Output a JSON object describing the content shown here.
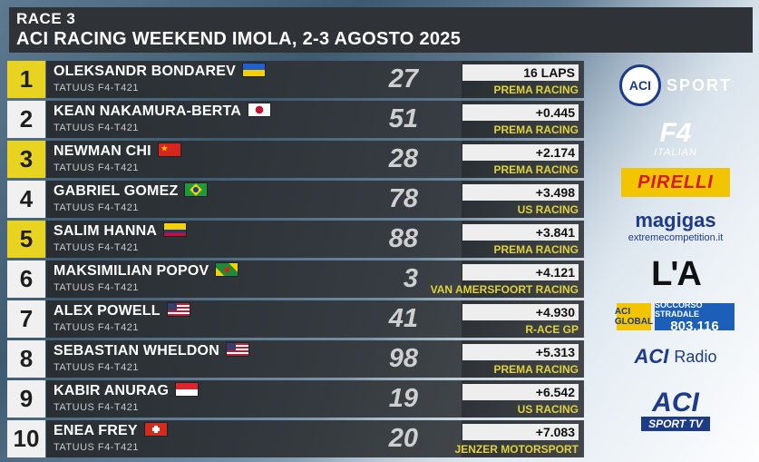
{
  "header": {
    "race": "RACE 3",
    "title": "ACI RACING WEEKEND IMOLA, 2-3 AGOSTO 2025"
  },
  "results": [
    {
      "pos": "1",
      "name": "OLEKSANDR BONDAREV",
      "flag": "ukraine-flag",
      "car": "TATUUS F4-T421",
      "number": "27",
      "gap": "16 LAPS",
      "team": "PREMA RACING",
      "highlight": true
    },
    {
      "pos": "2",
      "name": "KEAN NAKAMURA-BERTA",
      "flag": "japan-flag",
      "car": "TATUUS F4-T421",
      "number": "51",
      "gap": "+0.445",
      "team": "PREMA RACING",
      "highlight": false
    },
    {
      "pos": "3",
      "name": "NEWMAN CHI",
      "flag": "china-flag",
      "car": "TATUUS F4-T421",
      "number": "28",
      "gap": "+2.174",
      "team": "PREMA RACING",
      "highlight": true
    },
    {
      "pos": "4",
      "name": "GABRIEL GOMEZ",
      "flag": "brazil-flag",
      "car": "TATUUS F4-T421",
      "number": "78",
      "gap": "+3.498",
      "team": "US RACING",
      "highlight": false
    },
    {
      "pos": "5",
      "name": "SALIM HANNA",
      "flag": "colombia-flag",
      "car": "TATUUS F4-T421",
      "number": "88",
      "gap": "+3.841",
      "team": "PREMA RACING",
      "highlight": true
    },
    {
      "pos": "6",
      "name": "MAKSIMILIAN POPOV",
      "flag": "grenada-flag",
      "car": "TATUUS F4-T421",
      "number": "3",
      "gap": "+4.121",
      "team": "VAN AMERSFOORT RACING",
      "highlight": false
    },
    {
      "pos": "7",
      "name": "ALEX POWELL",
      "flag": "usa-flag",
      "car": "TATUUS F4-T421",
      "number": "41",
      "gap": "+4.930",
      "team": "R-ACE GP",
      "highlight": false
    },
    {
      "pos": "8",
      "name": "SEBASTIAN WHELDON",
      "flag": "usa-flag",
      "car": "TATUUS F4-T421",
      "number": "98",
      "gap": "+5.313",
      "team": "PREMA RACING",
      "highlight": false
    },
    {
      "pos": "9",
      "name": "KABIR ANURAG",
      "flag": "singapore-flag",
      "car": "TATUUS F4-T421",
      "number": "19",
      "gap": "+6.542",
      "team": "US RACING",
      "highlight": false
    },
    {
      "pos": "10",
      "name": "ENEA FREY",
      "flag": "switzerland-flag",
      "car": "TATUUS F4-T421",
      "number": "20",
      "gap": "+7.083",
      "team": "JENZER MOTORSPORT",
      "highlight": false
    }
  ],
  "sponsors": {
    "aci_sport": {
      "mark": "ACI",
      "text": "SPORT"
    },
    "f4": {
      "mark": "F4",
      "sub": "ITALIAN"
    },
    "pirelli": "PIRELLI",
    "magigas": {
      "name": "magigas",
      "site": "extremecompetition.it"
    },
    "lautomobile": "L'A",
    "aci_global": {
      "left": "ACI GLOBAL",
      "right_top": "SOCCORSO STRADALE",
      "right_num": "803.116"
    },
    "aci_radio": {
      "mark": "ACI",
      "text": "Radio"
    },
    "aci_sporttv": {
      "mark": "ACI",
      "text": "SPORT TV"
    }
  },
  "colors": {
    "panel": "#2f3338",
    "highlight_yellow": "#e8d420",
    "team_yellow": "#e2d23a",
    "aci_blue": "#1c3b88"
  }
}
